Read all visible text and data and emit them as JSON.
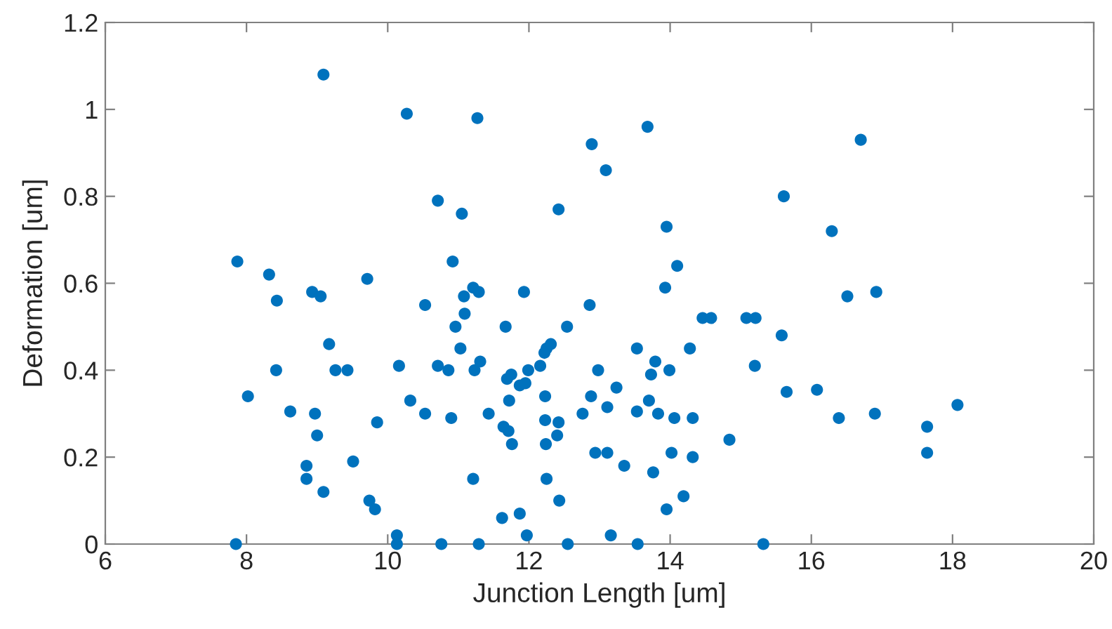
{
  "chart_data": {
    "type": "scatter",
    "xlabel": "Junction Length [um]",
    "ylabel": "Deformation [um]",
    "xlim": [
      6,
      20
    ],
    "xticks": [
      6,
      8,
      10,
      12,
      14,
      16,
      18,
      20
    ],
    "ylim": [
      0,
      1.2
    ],
    "yticks": [
      0,
      0.2,
      0.4,
      0.6,
      0.8,
      1,
      1.2
    ],
    "grid": false,
    "marker": "circle",
    "series": [
      {
        "color": "#0072bd",
        "x": [
          7.87,
          8.32,
          8.43,
          8.93,
          9.05,
          9.71,
          10.53,
          11.21,
          11.29,
          11.08,
          11.09,
          10.96,
          11.03,
          11.93,
          11.67,
          12.54,
          12.86,
          10.71,
          10.86,
          11.23,
          11.31,
          11.69,
          11.75,
          11.87,
          11.95,
          11.99,
          12.16,
          12.22,
          12.25,
          12.31,
          10.53,
          10.9,
          11.43,
          11.72,
          11.64,
          11.71,
          11.76,
          12.23,
          12.23,
          12.42,
          12.24,
          12.4,
          11.21,
          12.25,
          12.43,
          11.62,
          11.87,
          11.97,
          10.76,
          11.29,
          12.55,
          13.16,
          13.54,
          15.32,
          12.98,
          13.24,
          12.88,
          13.11,
          12.76,
          12.94,
          13.11,
          13.35,
          13.53,
          13.79,
          13.73,
          13.99,
          13.7,
          13.53,
          13.83,
          14.06,
          14.32,
          14.28,
          13.93,
          14.1,
          14.46,
          14.58,
          15.08,
          15.21,
          15.2,
          14.02,
          14.32,
          13.76,
          14.84,
          14.19,
          13.95,
          9.17,
          8.42,
          9.26,
          9.43,
          10.16,
          8.02,
          8.62,
          8.97,
          9.0,
          9.85,
          10.32,
          8.85,
          8.85,
          9.09,
          9.51,
          9.74,
          9.82,
          7.85,
          10.13,
          10.13,
          9.09,
          10.27,
          10.71,
          11.27,
          13.68,
          12.89,
          13.09,
          11.05,
          12.42,
          13.95,
          10.92,
          16.7,
          15.61,
          16.29,
          16.51,
          16.92,
          15.58,
          15.65,
          16.08,
          16.39,
          16.9,
          17.64,
          17.64,
          18.07
        ],
        "values": [
          0.65,
          0.62,
          0.56,
          0.58,
          0.57,
          0.61,
          0.55,
          0.59,
          0.58,
          0.57,
          0.53,
          0.5,
          0.45,
          0.58,
          0.5,
          0.5,
          0.55,
          0.41,
          0.4,
          0.4,
          0.42,
          0.38,
          0.39,
          0.365,
          0.37,
          0.4,
          0.41,
          0.44,
          0.45,
          0.46,
          0.3,
          0.29,
          0.3,
          0.33,
          0.27,
          0.26,
          0.23,
          0.34,
          0.285,
          0.28,
          0.23,
          0.25,
          0.15,
          0.15,
          0.1,
          0.06,
          0.07,
          0.02,
          0,
          0,
          0,
          0.02,
          0,
          0,
          0.4,
          0.36,
          0.34,
          0.315,
          0.3,
          0.21,
          0.21,
          0.18,
          0.45,
          0.42,
          0.39,
          0.4,
          0.33,
          0.305,
          0.3,
          0.29,
          0.29,
          0.45,
          0.59,
          0.64,
          0.52,
          0.52,
          0.52,
          0.52,
          0.41,
          0.21,
          0.2,
          0.165,
          0.24,
          0.11,
          0.08,
          0.46,
          0.4,
          0.4,
          0.4,
          0.41,
          0.34,
          0.305,
          0.3,
          0.25,
          0.28,
          0.33,
          0.18,
          0.15,
          0.12,
          0.19,
          0.1,
          0.08,
          0,
          0.02,
          0,
          1.08,
          0.99,
          0.79,
          0.98,
          0.96,
          0.92,
          0.86,
          0.76,
          0.77,
          0.73,
          0.65,
          0.93,
          0.8,
          0.72,
          0.57,
          0.58,
          0.48,
          0.35,
          0.355,
          0.29,
          0.3,
          0.27,
          0.21,
          0.32
        ]
      }
    ]
  }
}
